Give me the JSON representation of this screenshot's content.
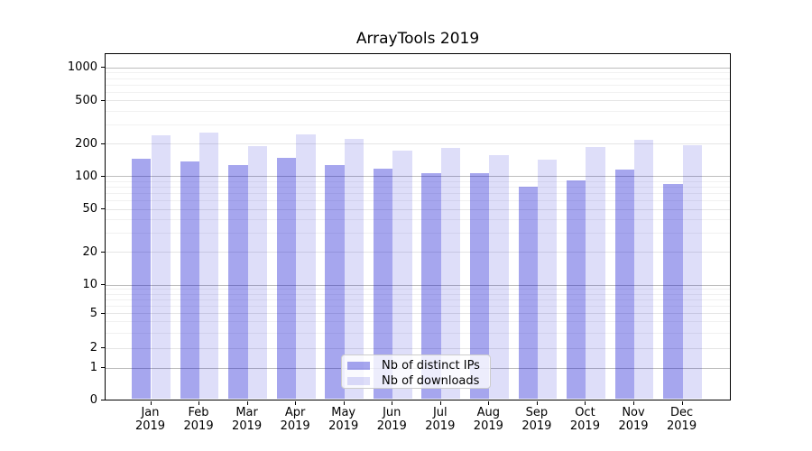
{
  "chart_data": {
    "type": "bar",
    "title": "ArrayTools 2019",
    "categories": [
      "Jan",
      "Feb",
      "Mar",
      "Apr",
      "May",
      "Jun",
      "Jul",
      "Aug",
      "Sep",
      "Oct",
      "Nov",
      "Dec"
    ],
    "category_year": "2019",
    "series": [
      {
        "name": "Nb of distinct IPs",
        "color": "rgba(0,0,205,0.35)",
        "values": [
          140,
          132,
          124,
          144,
          122,
          113,
          104,
          103,
          77,
          89,
          111,
          82
        ]
      },
      {
        "name": "Nb of downloads",
        "color": "rgba(0,0,205,0.13)",
        "values": [
          230,
          245,
          185,
          236,
          216,
          168,
          176,
          151,
          139,
          180,
          209,
          188
        ]
      }
    ],
    "xlabel": "",
    "ylabel": "",
    "yscale": "symlog",
    "y_ticks": [
      0,
      1,
      2,
      5,
      10,
      20,
      50,
      100,
      200,
      500,
      1000
    ],
    "ylim": [
      0,
      1340
    ],
    "grid": "horizontal major and minor",
    "legend_position": "lower center",
    "colors": {
      "bar_dark": "rgba(0,0,205,0.35)",
      "bar_light": "rgba(0,0,205,0.13)",
      "grid_major": "#bdbdbd",
      "grid_minor": "#e5e5e5",
      "axis_frame": "#000000",
      "text": "#000000"
    }
  }
}
